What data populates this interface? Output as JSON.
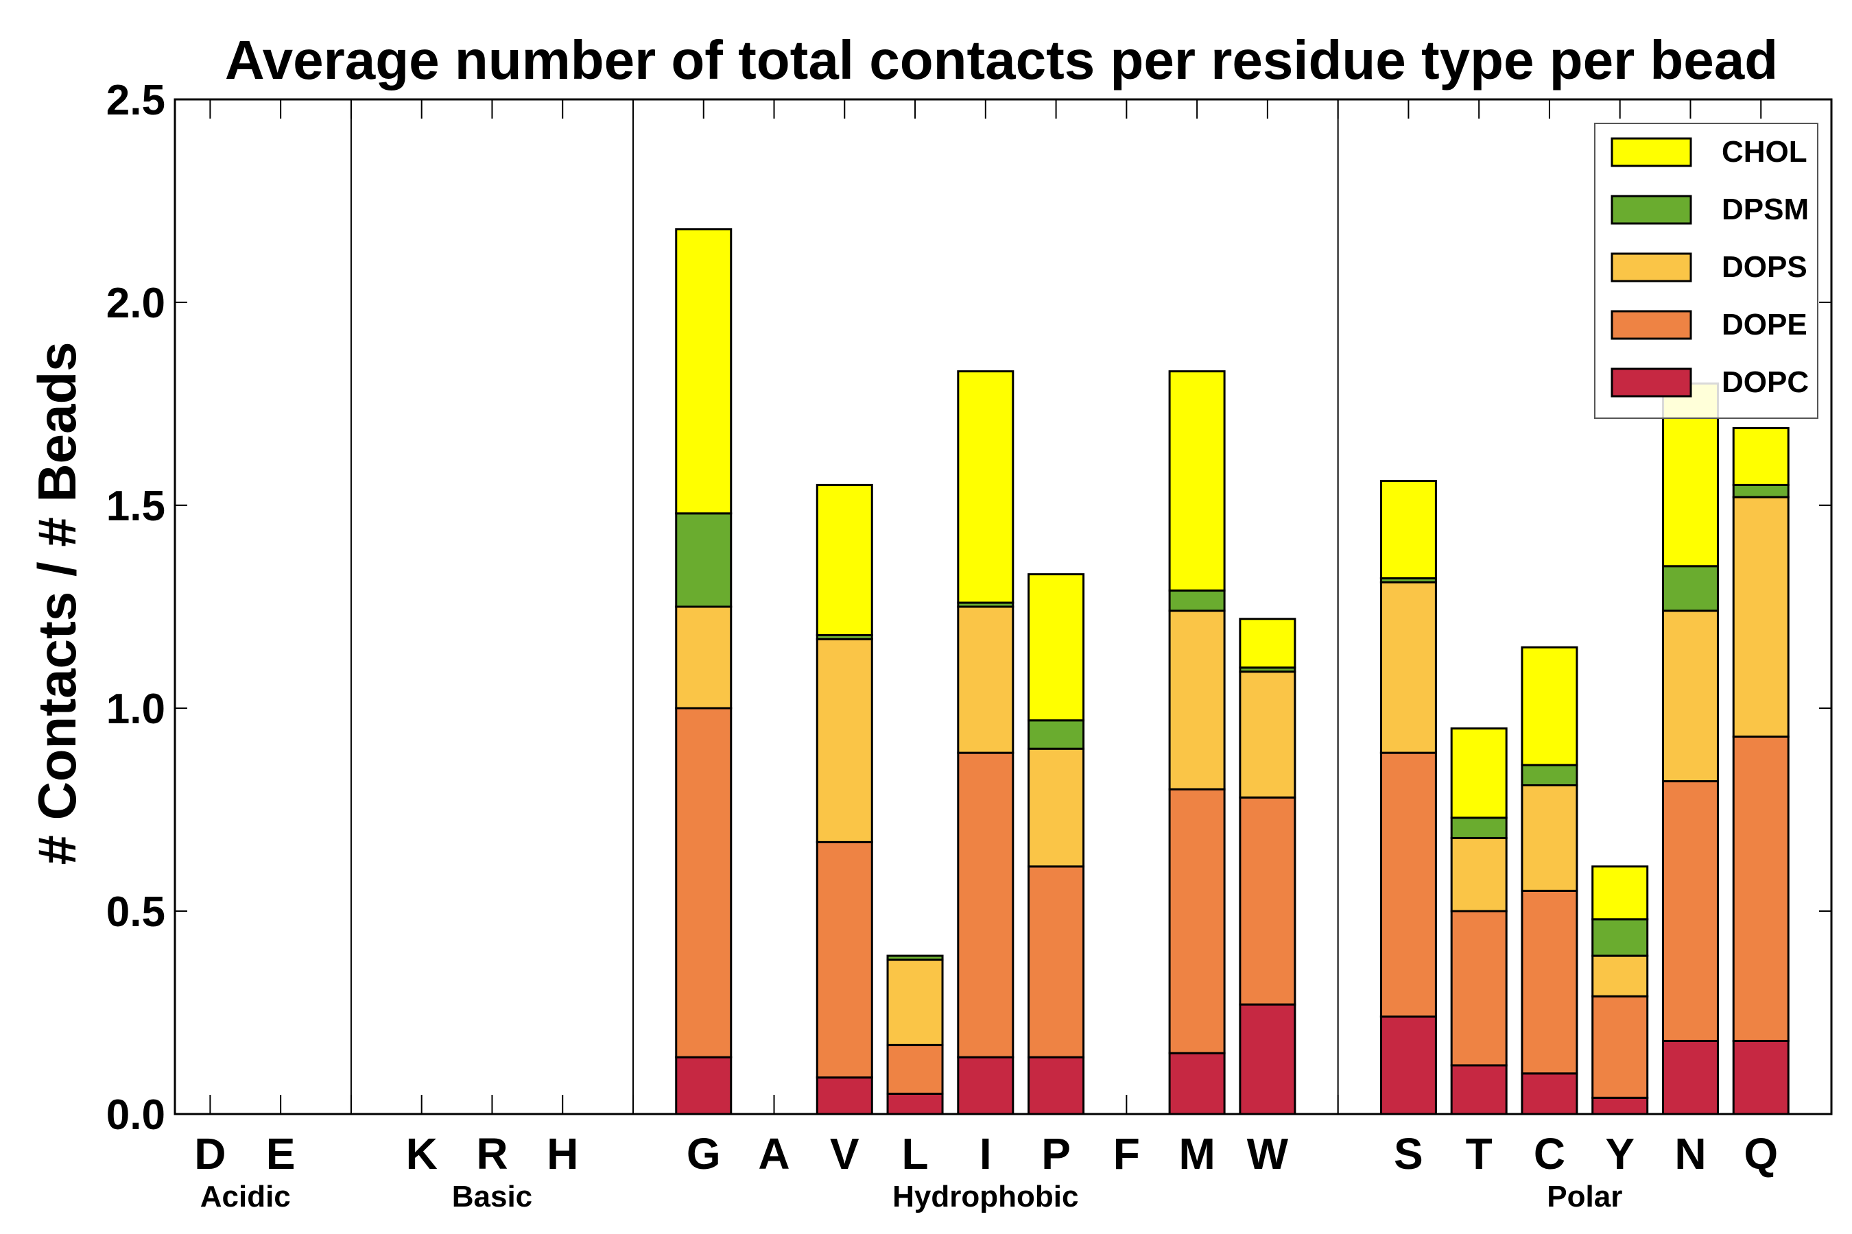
{
  "chart_data": {
    "type": "bar",
    "stacked": true,
    "title": "Average number of total contacts per residue type per bead",
    "xlabel": "",
    "ylabel": "# Contacts / # Beads",
    "ylim": [
      0,
      2.5
    ],
    "yticks": [
      "0.0",
      "0.5",
      "1.0",
      "1.5",
      "2.0",
      "2.5"
    ],
    "categories": [
      "D",
      "E",
      "",
      "K",
      "R",
      "H",
      "",
      "G",
      "A",
      "V",
      "L",
      "I",
      "P",
      "F",
      "M",
      "W",
      "",
      "S",
      "T",
      "C",
      "Y",
      "N",
      "Q"
    ],
    "groups": [
      {
        "label": "Acidic",
        "members": [
          "D",
          "E"
        ]
      },
      {
        "label": "Basic",
        "members": [
          "K",
          "R",
          "H"
        ]
      },
      {
        "label": "Hydrophobic",
        "members": [
          "G",
          "A",
          "V",
          "L",
          "I",
          "P",
          "F",
          "M",
          "W"
        ]
      },
      {
        "label": "Polar",
        "members": [
          "S",
          "T",
          "C",
          "Y",
          "N",
          "Q"
        ]
      }
    ],
    "series": [
      {
        "name": "DOPC",
        "color": "#c62842",
        "values": [
          0,
          0,
          0,
          0,
          0,
          0,
          0,
          0.14,
          0,
          0.09,
          0.05,
          0.14,
          0.14,
          0,
          0.15,
          0.27,
          0,
          0.24,
          0.12,
          0.1,
          0.04,
          0.18,
          0.18
        ]
      },
      {
        "name": "DOPE",
        "color": "#ee8344",
        "values": [
          0,
          0,
          0,
          0,
          0,
          0,
          0,
          0.86,
          0,
          0.58,
          0.12,
          0.75,
          0.47,
          0,
          0.65,
          0.51,
          0,
          0.65,
          0.38,
          0.45,
          0.25,
          0.64,
          0.75
        ]
      },
      {
        "name": "DOPS",
        "color": "#fac547",
        "values": [
          0,
          0,
          0,
          0,
          0,
          0,
          0,
          0.25,
          0,
          0.5,
          0.21,
          0.36,
          0.29,
          0,
          0.44,
          0.31,
          0,
          0.42,
          0.18,
          0.26,
          0.1,
          0.42,
          0.59
        ]
      },
      {
        "name": "DPSM",
        "color": "#6aac2f",
        "values": [
          0,
          0,
          0,
          0,
          0,
          0,
          0,
          0.23,
          0,
          0.01,
          0.01,
          0.01,
          0.07,
          0,
          0.05,
          0.01,
          0,
          0.01,
          0.05,
          0.05,
          0.09,
          0.11,
          0.03
        ]
      },
      {
        "name": "CHOL",
        "color": "#ffff00",
        "values": [
          0,
          0,
          0,
          0,
          0,
          0,
          0,
          0.7,
          0,
          0.37,
          0,
          0.57,
          0.36,
          0,
          0.54,
          0.12,
          0,
          0.24,
          0.22,
          0.29,
          0.13,
          0.45,
          0.14
        ]
      }
    ],
    "legend_order": [
      "CHOL",
      "DPSM",
      "DOPS",
      "DOPE",
      "DOPC"
    ],
    "legend_position": "top-right",
    "grid": false
  }
}
